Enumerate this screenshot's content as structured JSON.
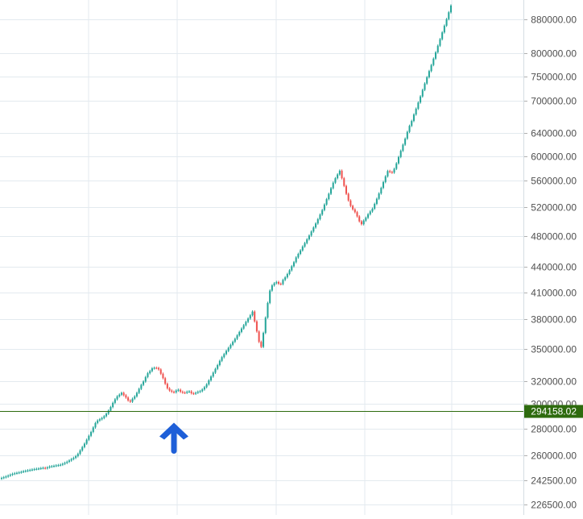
{
  "chart_data": {
    "type": "candlestick",
    "title": "",
    "xlabel": "",
    "ylabel": "",
    "y_scale": "log",
    "ylim": [
      222000,
      920000
    ],
    "grid": true,
    "y_ticks": [
      {
        "value": 880000,
        "label": "880000.00"
      },
      {
        "value": 800000,
        "label": "800000.00"
      },
      {
        "value": 750000,
        "label": "750000.00"
      },
      {
        "value": 700000,
        "label": "700000.00"
      },
      {
        "value": 640000,
        "label": "640000.00"
      },
      {
        "value": 600000,
        "label": "600000.00"
      },
      {
        "value": 560000,
        "label": "560000.00"
      },
      {
        "value": 520000,
        "label": "520000.00"
      },
      {
        "value": 480000,
        "label": "480000.00"
      },
      {
        "value": 440000,
        "label": "440000.00"
      },
      {
        "value": 410000,
        "label": "410000.00"
      },
      {
        "value": 380000,
        "label": "380000.00"
      },
      {
        "value": 350000,
        "label": "350000.00"
      },
      {
        "value": 320000,
        "label": "320000.00"
      },
      {
        "value": 300000,
        "label": "300000.00"
      },
      {
        "value": 280000,
        "label": "280000.00"
      },
      {
        "value": 260000,
        "label": "260000.00"
      },
      {
        "value": 242500,
        "label": "242500.00"
      },
      {
        "value": 226500,
        "label": "226500.00"
      }
    ],
    "price_line": {
      "value": 294158.02,
      "label": "294158.02",
      "color": "#2e6b0e"
    },
    "marker": {
      "type": "arrow-up",
      "color": "#1e5fd8",
      "at_index": 79
    },
    "colors": {
      "up": "#26a69a",
      "down": "#ef5350",
      "grid": "#e3eaef",
      "axis_text": "#505050"
    },
    "close": [
      244000,
      244500,
      245000,
      245600,
      246200,
      246800,
      247200,
      247500,
      247800,
      248200,
      248600,
      248900,
      249200,
      249500,
      249800,
      250100,
      250300,
      250500,
      250800,
      251000,
      250700,
      251300,
      251900,
      252100,
      252400,
      252700,
      252900,
      253200,
      253800,
      254500,
      255300,
      256200,
      257200,
      258100,
      259300,
      261000,
      263500,
      266000,
      268500,
      271500,
      274500,
      277500,
      281000,
      284500,
      286500,
      287500,
      288500,
      290000,
      292000,
      294500,
      297500,
      301000,
      304000,
      306500,
      308000,
      309500,
      307500,
      305500,
      303000,
      302000,
      304500,
      306500,
      309500,
      313000,
      316500,
      319500,
      323500,
      327000,
      329000,
      331500,
      332000,
      331800,
      330500,
      326500,
      322500,
      317500,
      313500,
      311500,
      310500,
      310000,
      311500,
      312200,
      310500,
      309800,
      309600,
      310500,
      310800,
      309200,
      308800,
      309600,
      310500,
      311000,
      312500,
      314500,
      317000,
      320500,
      324000,
      327500,
      331000,
      334500,
      338500,
      342000,
      345000,
      348000,
      351000,
      354000,
      357000,
      360000,
      363500,
      367000,
      370500,
      374000,
      377500,
      381000,
      384500,
      388500,
      378000,
      367500,
      357000,
      352000,
      366000,
      382000,
      398000,
      412000,
      418000,
      420500,
      422000,
      420000,
      419500,
      424500,
      427500,
      431500,
      436000,
      441000,
      446000,
      452000,
      456500,
      461000,
      466000,
      470500,
      475500,
      480500,
      486000,
      491500,
      497000,
      503000,
      509500,
      516000,
      524000,
      532000,
      540000,
      548500,
      557000,
      564000,
      570000,
      576000,
      564000,
      552000,
      540000,
      530000,
      522000,
      517000,
      513000,
      507000,
      500000,
      496000,
      501000,
      505000,
      510000,
      514000,
      518000,
      525000,
      532500,
      540500,
      549000,
      558000,
      567000,
      575500,
      574000,
      573000,
      579000,
      588000,
      598500,
      609000,
      619500,
      630000,
      642000,
      653000,
      662000,
      674000,
      685000,
      697000,
      709000,
      722000,
      735000,
      748000,
      761000,
      774000,
      788000,
      802000,
      817000,
      832000,
      848000,
      864000,
      880000,
      897000,
      914000
    ]
  }
}
